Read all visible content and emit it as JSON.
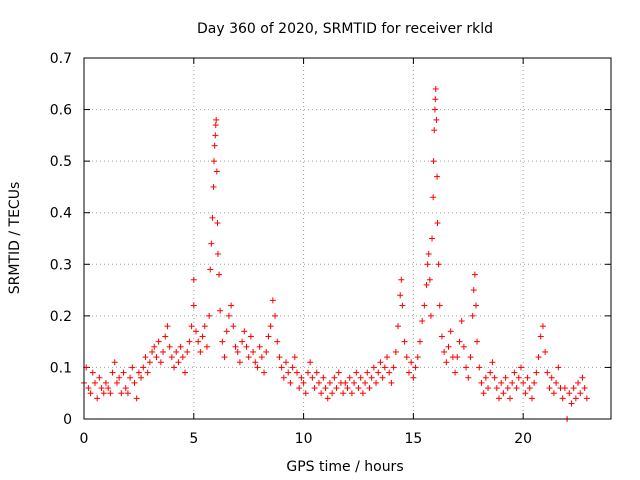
{
  "chart_data": {
    "type": "scatter",
    "title": "Day 360 of 2020, SRMTID for receiver rkld",
    "xlabel": "GPS time / hours",
    "ylabel": "SRMTID / TECUs",
    "xlim": [
      0,
      24
    ],
    "ylim": [
      0,
      0.7
    ],
    "xticks": [
      0,
      5,
      10,
      15,
      20
    ],
    "xtick_labels": [
      "0",
      "5",
      "10",
      "15",
      "20"
    ],
    "yticks": [
      0,
      0.1,
      0.2,
      0.3,
      0.4,
      0.5,
      0.6,
      0.7
    ],
    "ytick_labels": [
      "0",
      "0.1",
      "0.2",
      "0.3",
      "0.4",
      "0.5",
      "0.6",
      "0.7"
    ],
    "grid": true,
    "marker": "+",
    "series": [
      {
        "name": "SRMTID",
        "color": "#ff0000",
        "points": [
          [
            0.0,
            0.07
          ],
          [
            0.1,
            0.1
          ],
          [
            0.2,
            0.06
          ],
          [
            0.3,
            0.05
          ],
          [
            0.4,
            0.09
          ],
          [
            0.5,
            0.07
          ],
          [
            0.6,
            0.04
          ],
          [
            0.7,
            0.08
          ],
          [
            0.8,
            0.06
          ],
          [
            0.9,
            0.05
          ],
          [
            1.0,
            0.07
          ],
          [
            1.1,
            0.06
          ],
          [
            1.2,
            0.05
          ],
          [
            1.3,
            0.09
          ],
          [
            1.4,
            0.11
          ],
          [
            1.5,
            0.07
          ],
          [
            1.6,
            0.08
          ],
          [
            1.7,
            0.05
          ],
          [
            1.8,
            0.09
          ],
          [
            1.9,
            0.06
          ],
          [
            2.0,
            0.05
          ],
          [
            2.1,
            0.08
          ],
          [
            2.2,
            0.1
          ],
          [
            2.3,
            0.07
          ],
          [
            2.4,
            0.04
          ],
          [
            2.5,
            0.09
          ],
          [
            2.6,
            0.08
          ],
          [
            2.7,
            0.1
          ],
          [
            2.8,
            0.12
          ],
          [
            2.9,
            0.09
          ],
          [
            3.0,
            0.11
          ],
          [
            3.1,
            0.13
          ],
          [
            3.2,
            0.14
          ],
          [
            3.3,
            0.12
          ],
          [
            3.4,
            0.15
          ],
          [
            3.5,
            0.11
          ],
          [
            3.6,
            0.13
          ],
          [
            3.7,
            0.16
          ],
          [
            3.8,
            0.18
          ],
          [
            3.9,
            0.14
          ],
          [
            4.0,
            0.12
          ],
          [
            4.1,
            0.1
          ],
          [
            4.2,
            0.13
          ],
          [
            4.3,
            0.11
          ],
          [
            4.4,
            0.14
          ],
          [
            4.5,
            0.12
          ],
          [
            4.6,
            0.09
          ],
          [
            4.7,
            0.13
          ],
          [
            4.8,
            0.15
          ],
          [
            4.9,
            0.18
          ],
          [
            5.0,
            0.22
          ],
          [
            5.0,
            0.27
          ],
          [
            5.1,
            0.17
          ],
          [
            5.2,
            0.15
          ],
          [
            5.3,
            0.13
          ],
          [
            5.4,
            0.16
          ],
          [
            5.5,
            0.18
          ],
          [
            5.6,
            0.14
          ],
          [
            5.7,
            0.2
          ],
          [
            5.75,
            0.29
          ],
          [
            5.8,
            0.34
          ],
          [
            5.85,
            0.39
          ],
          [
            5.9,
            0.45
          ],
          [
            5.92,
            0.5
          ],
          [
            5.95,
            0.53
          ],
          [
            5.98,
            0.55
          ],
          [
            6.0,
            0.57
          ],
          [
            6.02,
            0.58
          ],
          [
            6.05,
            0.48
          ],
          [
            6.08,
            0.38
          ],
          [
            6.1,
            0.32
          ],
          [
            6.15,
            0.28
          ],
          [
            6.2,
            0.21
          ],
          [
            6.3,
            0.15
          ],
          [
            6.4,
            0.12
          ],
          [
            6.5,
            0.17
          ],
          [
            6.6,
            0.2
          ],
          [
            6.7,
            0.22
          ],
          [
            6.8,
            0.18
          ],
          [
            6.9,
            0.14
          ],
          [
            7.0,
            0.13
          ],
          [
            7.1,
            0.11
          ],
          [
            7.2,
            0.15
          ],
          [
            7.3,
            0.17
          ],
          [
            7.4,
            0.14
          ],
          [
            7.5,
            0.12
          ],
          [
            7.6,
            0.16
          ],
          [
            7.7,
            0.13
          ],
          [
            7.8,
            0.11
          ],
          [
            7.9,
            0.1
          ],
          [
            8.0,
            0.14
          ],
          [
            8.1,
            0.12
          ],
          [
            8.2,
            0.09
          ],
          [
            8.3,
            0.13
          ],
          [
            8.4,
            0.16
          ],
          [
            8.5,
            0.18
          ],
          [
            8.6,
            0.23
          ],
          [
            8.7,
            0.2
          ],
          [
            8.8,
            0.15
          ],
          [
            8.9,
            0.12
          ],
          [
            9.0,
            0.1
          ],
          [
            9.1,
            0.08
          ],
          [
            9.2,
            0.11
          ],
          [
            9.3,
            0.09
          ],
          [
            9.4,
            0.07
          ],
          [
            9.5,
            0.1
          ],
          [
            9.6,
            0.12
          ],
          [
            9.7,
            0.09
          ],
          [
            9.8,
            0.06
          ],
          [
            9.9,
            0.08
          ],
          [
            10.0,
            0.07
          ],
          [
            10.1,
            0.05
          ],
          [
            10.2,
            0.09
          ],
          [
            10.3,
            0.11
          ],
          [
            10.4,
            0.08
          ],
          [
            10.5,
            0.06
          ],
          [
            10.6,
            0.09
          ],
          [
            10.7,
            0.07
          ],
          [
            10.8,
            0.05
          ],
          [
            10.9,
            0.08
          ],
          [
            11.0,
            0.06
          ],
          [
            11.1,
            0.04
          ],
          [
            11.2,
            0.07
          ],
          [
            11.3,
            0.05
          ],
          [
            11.4,
            0.08
          ],
          [
            11.5,
            0.06
          ],
          [
            11.6,
            0.09
          ],
          [
            11.7,
            0.07
          ],
          [
            11.8,
            0.05
          ],
          [
            11.9,
            0.07
          ],
          [
            12.0,
            0.06
          ],
          [
            12.1,
            0.08
          ],
          [
            12.2,
            0.05
          ],
          [
            12.3,
            0.07
          ],
          [
            12.4,
            0.09
          ],
          [
            12.5,
            0.06
          ],
          [
            12.6,
            0.08
          ],
          [
            12.7,
            0.05
          ],
          [
            12.8,
            0.07
          ],
          [
            12.9,
            0.09
          ],
          [
            13.0,
            0.06
          ],
          [
            13.1,
            0.08
          ],
          [
            13.2,
            0.1
          ],
          [
            13.3,
            0.07
          ],
          [
            13.4,
            0.09
          ],
          [
            13.5,
            0.11
          ],
          [
            13.6,
            0.08
          ],
          [
            13.7,
            0.1
          ],
          [
            13.8,
            0.12
          ],
          [
            13.9,
            0.09
          ],
          [
            14.0,
            0.07
          ],
          [
            14.1,
            0.1
          ],
          [
            14.2,
            0.13
          ],
          [
            14.3,
            0.18
          ],
          [
            14.4,
            0.24
          ],
          [
            14.45,
            0.27
          ],
          [
            14.5,
            0.22
          ],
          [
            14.6,
            0.15
          ],
          [
            14.7,
            0.12
          ],
          [
            14.8,
            0.09
          ],
          [
            14.9,
            0.11
          ],
          [
            15.0,
            0.08
          ],
          [
            15.1,
            0.1
          ],
          [
            15.2,
            0.12
          ],
          [
            15.3,
            0.15
          ],
          [
            15.4,
            0.19
          ],
          [
            15.5,
            0.22
          ],
          [
            15.6,
            0.26
          ],
          [
            15.65,
            0.3
          ],
          [
            15.7,
            0.32
          ],
          [
            15.75,
            0.27
          ],
          [
            15.8,
            0.2
          ],
          [
            15.85,
            0.35
          ],
          [
            15.9,
            0.43
          ],
          [
            15.92,
            0.5
          ],
          [
            15.95,
            0.56
          ],
          [
            15.98,
            0.6
          ],
          [
            16.0,
            0.62
          ],
          [
            16.02,
            0.64
          ],
          [
            16.05,
            0.58
          ],
          [
            16.08,
            0.47
          ],
          [
            16.1,
            0.38
          ],
          [
            16.15,
            0.3
          ],
          [
            16.2,
            0.22
          ],
          [
            16.3,
            0.16
          ],
          [
            16.4,
            0.13
          ],
          [
            16.5,
            0.11
          ],
          [
            16.6,
            0.14
          ],
          [
            16.7,
            0.17
          ],
          [
            16.8,
            0.12
          ],
          [
            16.9,
            0.09
          ],
          [
            17.0,
            0.12
          ],
          [
            17.1,
            0.15
          ],
          [
            17.2,
            0.19
          ],
          [
            17.3,
            0.14
          ],
          [
            17.4,
            0.1
          ],
          [
            17.5,
            0.08
          ],
          [
            17.6,
            0.12
          ],
          [
            17.7,
            0.2
          ],
          [
            17.75,
            0.25
          ],
          [
            17.8,
            0.28
          ],
          [
            17.85,
            0.22
          ],
          [
            17.9,
            0.15
          ],
          [
            18.0,
            0.1
          ],
          [
            18.1,
            0.07
          ],
          [
            18.2,
            0.05
          ],
          [
            18.3,
            0.08
          ],
          [
            18.4,
            0.06
          ],
          [
            18.5,
            0.09
          ],
          [
            18.6,
            0.11
          ],
          [
            18.7,
            0.08
          ],
          [
            18.8,
            0.06
          ],
          [
            18.9,
            0.04
          ],
          [
            19.0,
            0.07
          ],
          [
            19.1,
            0.05
          ],
          [
            19.2,
            0.08
          ],
          [
            19.3,
            0.06
          ],
          [
            19.4,
            0.04
          ],
          [
            19.5,
            0.07
          ],
          [
            19.6,
            0.09
          ],
          [
            19.7,
            0.06
          ],
          [
            19.8,
            0.08
          ],
          [
            19.9,
            0.1
          ],
          [
            20.0,
            0.07
          ],
          [
            20.1,
            0.05
          ],
          [
            20.2,
            0.08
          ],
          [
            20.3,
            0.06
          ],
          [
            20.4,
            0.04
          ],
          [
            20.5,
            0.07
          ],
          [
            20.6,
            0.09
          ],
          [
            20.7,
            0.12
          ],
          [
            20.8,
            0.16
          ],
          [
            20.9,
            0.18
          ],
          [
            21.0,
            0.13
          ],
          [
            21.1,
            0.09
          ],
          [
            21.2,
            0.06
          ],
          [
            21.3,
            0.08
          ],
          [
            21.4,
            0.05
          ],
          [
            21.5,
            0.07
          ],
          [
            21.6,
            0.1
          ],
          [
            21.7,
            0.06
          ],
          [
            21.8,
            0.04
          ],
          [
            21.9,
            0.06
          ],
          [
            22.0,
            0.0
          ],
          [
            22.1,
            0.05
          ],
          [
            22.2,
            0.03
          ],
          [
            22.3,
            0.06
          ],
          [
            22.4,
            0.04
          ],
          [
            22.5,
            0.07
          ],
          [
            22.6,
            0.05
          ],
          [
            22.7,
            0.08
          ],
          [
            22.8,
            0.06
          ],
          [
            22.9,
            0.04
          ]
        ]
      }
    ]
  }
}
